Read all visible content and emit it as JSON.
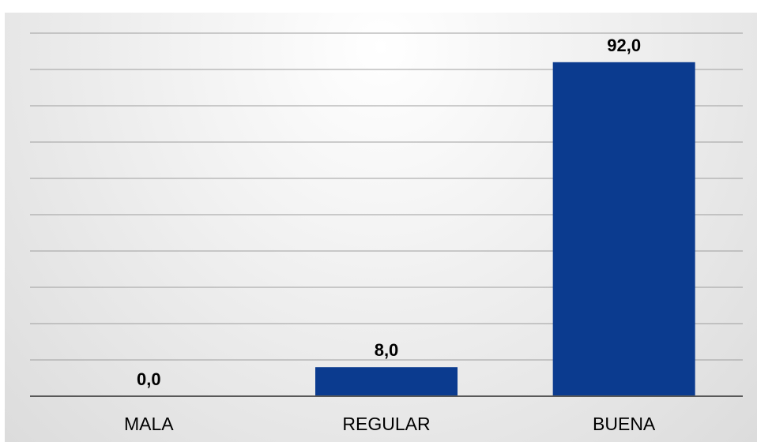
{
  "chart_data": {
    "type": "bar",
    "categories": [
      "MALA",
      "REGULAR",
      "BUENA"
    ],
    "values": [
      0.0,
      8.0,
      92.0
    ],
    "data_labels": [
      "0,0",
      "8,0",
      "92,0"
    ],
    "title": "",
    "xlabel": "",
    "ylabel": "",
    "ylim": [
      0,
      100
    ],
    "grid": true,
    "legend": "none",
    "bar_color": "#0b3b8f"
  }
}
